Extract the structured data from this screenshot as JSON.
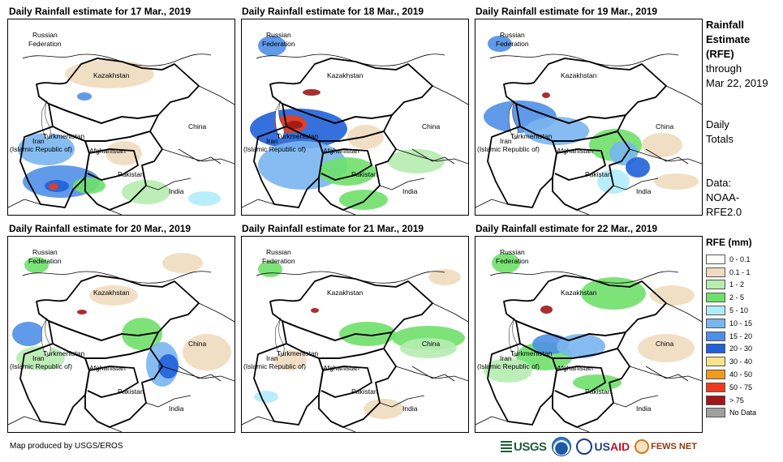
{
  "panels": [
    {
      "title": "Daily Rainfall estimate for 17 Mar., 2019"
    },
    {
      "title": "Daily Rainfall estimate for 18 Mar., 2019"
    },
    {
      "title": "Daily Rainfall estimate for 19 Mar., 2019"
    },
    {
      "title": "Daily Rainfall estimate for 20 Mar., 2019"
    },
    {
      "title": "Daily Rainfall estimate for 21 Mar., 2019"
    },
    {
      "title": "Daily Rainfall estimate for 22 Mar., 2019"
    }
  ],
  "map_labels": {
    "russia_1": "Russian",
    "russia_2": "Federation",
    "kazakhstan": "Kazakhstan",
    "turkmenistan": "Turkmenistan",
    "china": "China",
    "iran_1": "Iran",
    "iran_2": "(Islamic Republic of)",
    "afghanistan": "Afghanistan",
    "pakistan": "Pakistan",
    "india": "India"
  },
  "side": {
    "title_1": "Rainfall",
    "title_2": "Estimate",
    "title_3": "(RFE)",
    "through": "through",
    "date": "Mar 22, 2019",
    "daily": "Daily",
    "totals": "Totals",
    "data_1": "Data:",
    "data_2": "NOAA-",
    "data_3": "RFE2.0"
  },
  "legend": {
    "title": "RFE (mm)",
    "items": [
      {
        "label": "0 - 0.1",
        "color": "#ffffff"
      },
      {
        "label": "0.1 - 1",
        "color": "#efdcbf"
      },
      {
        "label": "1 - 2",
        "color": "#b6ecb0"
      },
      {
        "label": "2 - 5",
        "color": "#6fe06a"
      },
      {
        "label": "5 - 10",
        "color": "#b0ecf8"
      },
      {
        "label": "10 - 15",
        "color": "#79b5ef"
      },
      {
        "label": "15 - 20",
        "color": "#4f8fe6"
      },
      {
        "label": "20 - 30",
        "color": "#2060d8"
      },
      {
        "label": "30 - 40",
        "color": "#f8e28a"
      },
      {
        "label": "40 - 50",
        "color": "#f39a1e"
      },
      {
        "label": "50 - 75",
        "color": "#ef3b1a"
      },
      {
        "label": "> 75",
        "color": "#a01818"
      },
      {
        "label": "No Data",
        "color": "#a0a0a0"
      }
    ]
  },
  "footer": {
    "credit": "Map produced by USGS/EROS"
  },
  "logos": {
    "usgs": "USGS",
    "usaid_1": "US",
    "usaid_2": "AID",
    "fews": "FEWS NET"
  }
}
